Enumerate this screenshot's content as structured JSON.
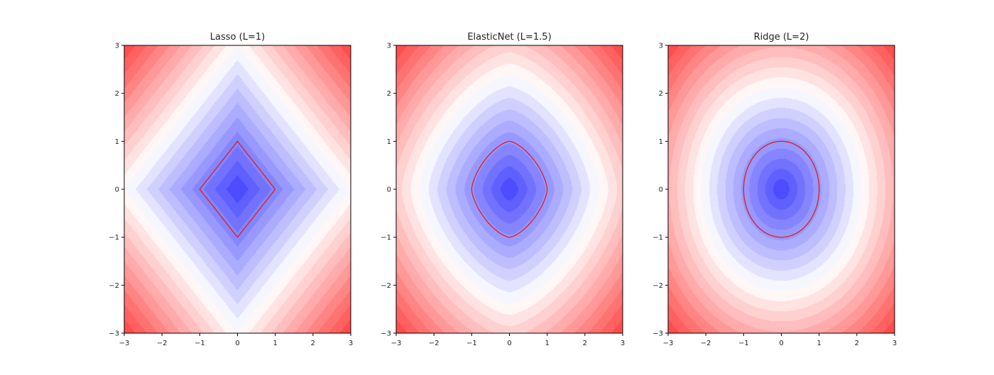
{
  "chart_data": [
    {
      "type": "heatmap",
      "title": "Lasso (L=1)",
      "norm": "L1",
      "p": 1,
      "xlim": [
        -3,
        3
      ],
      "ylim": [
        -3,
        3
      ],
      "x_ticks": [
        -3,
        -2,
        -1,
        0,
        1,
        2,
        3
      ],
      "y_ticks": [
        -3,
        -2,
        -1,
        0,
        1,
        2,
        3
      ],
      "x_tick_labels": [
        "−3",
        "−2",
        "−1",
        "0",
        "1",
        "2",
        "3"
      ],
      "y_tick_labels": [
        "−3",
        "−2",
        "−1",
        "0",
        "1",
        "2",
        "3"
      ],
      "value_range": [
        0,
        6
      ],
      "contour_level": 1,
      "grid": false
    },
    {
      "type": "heatmap",
      "title": "ElasticNet (L=1.5)",
      "norm": "L1.5",
      "p": 1.5,
      "xlim": [
        -3,
        3
      ],
      "ylim": [
        -3,
        3
      ],
      "x_ticks": [
        -3,
        -2,
        -1,
        0,
        1,
        2,
        3
      ],
      "y_ticks": [
        -3,
        -2,
        -1,
        0,
        1,
        2,
        3
      ],
      "x_tick_labels": [
        "−3",
        "−2",
        "−1",
        "0",
        "1",
        "2",
        "3"
      ],
      "y_tick_labels": [
        "−3",
        "−2",
        "−1",
        "0",
        "1",
        "2",
        "3"
      ],
      "value_range": [
        0,
        4.76
      ],
      "contour_level": 1,
      "grid": false
    },
    {
      "type": "heatmap",
      "title": "Ridge (L=2)",
      "norm": "L2",
      "p": 2,
      "xlim": [
        -3,
        3
      ],
      "ylim": [
        -3,
        3
      ],
      "x_ticks": [
        -3,
        -2,
        -1,
        0,
        1,
        2,
        3
      ],
      "y_ticks": [
        -3,
        -2,
        -1,
        0,
        1,
        2,
        3
      ],
      "x_tick_labels": [
        "−3",
        "−2",
        "−1",
        "0",
        "1",
        "2",
        "3"
      ],
      "y_tick_labels": [
        "−3",
        "−2",
        "−1",
        "0",
        "1",
        "2",
        "3"
      ],
      "value_range": [
        0,
        4.24
      ],
      "contour_level": 1,
      "grid": false
    }
  ],
  "style": {
    "colormap": "bwr",
    "cmap_low": "#4d4dff",
    "cmap_mid": "#ffffff",
    "cmap_high": "#ff4d4d",
    "contour_color": "#d62728",
    "levels": 20
  }
}
